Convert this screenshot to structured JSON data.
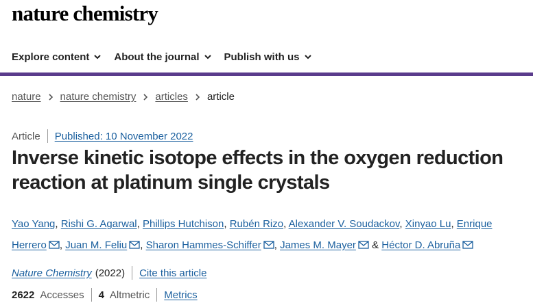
{
  "site": {
    "logo": "nature chemistry"
  },
  "nav": {
    "items": [
      {
        "label": "Explore content"
      },
      {
        "label": "About the journal"
      },
      {
        "label": "Publish with us"
      }
    ]
  },
  "breadcrumb": {
    "items": [
      "nature",
      "nature chemistry",
      "articles"
    ],
    "current": "article"
  },
  "article": {
    "type": "Article",
    "published": "Published: 10 November 2022",
    "title": "Inverse kinetic isotope effects in the oxygen reduction reaction at platinum single crystals",
    "authors": [
      {
        "name": "Yao Yang",
        "sep": ", "
      },
      {
        "name": "Rishi G. Agarwal",
        "sep": ", "
      },
      {
        "name": "Phillips Hutchison",
        "sep": ", "
      },
      {
        "name": "Rubén Rizo",
        "sep": ", "
      },
      {
        "name": "Alexander V. Soudackov",
        "sep": ", "
      },
      {
        "name": "Xinyao Lu",
        "sep": ", "
      },
      {
        "name": "Enrique Herrero",
        "sep": ", "
      },
      {
        "name": "Juan M. Feliu",
        "sep": ", "
      },
      {
        "name": "Sharon Hammes-Schiffer",
        "sep": ", "
      },
      {
        "name": "James M. Mayer",
        "sep": " & "
      },
      {
        "name": "Héctor D. Abruña",
        "sep": ""
      }
    ],
    "journal": "Nature Chemistry",
    "year": "(2022)",
    "cite_label": "Cite this article",
    "accesses_count": "2622",
    "accesses_label": "Accesses",
    "altmetric_count": "4",
    "altmetric_label": "Altmetric",
    "metrics_label": "Metrics"
  },
  "colors": {
    "accent_rule": "#5a3b8c",
    "link": "#1a5f9e"
  }
}
